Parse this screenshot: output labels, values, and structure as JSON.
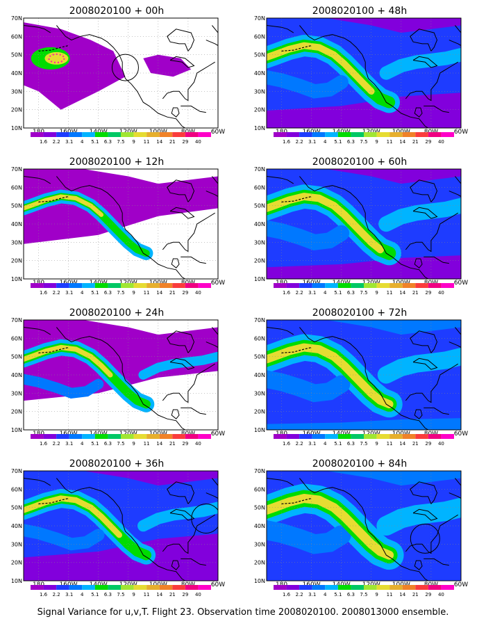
{
  "caption": "Signal Variance for u,v,T. Flight 23. Observation time 2008020100. 2008013000 ensemble.",
  "axes": {
    "lat_labels": [
      "70N",
      "60N",
      "50N",
      "40N",
      "30N",
      "20N",
      "10N"
    ],
    "lon_labels": [
      "180",
      "160W",
      "140W",
      "120W",
      "100W",
      "80W",
      "60W"
    ]
  },
  "colorbar": {
    "labels": [
      "1.6",
      "2.2",
      "3.1",
      "4",
      "5.1",
      "6.3",
      "7.5",
      "9",
      "11",
      "14",
      "21",
      "29",
      "40"
    ],
    "colors": [
      "#a000c8",
      "#8200dc",
      "#1e3cff",
      "#0078ff",
      "#00b4ff",
      "#00dc00",
      "#00c864",
      "#a0e632",
      "#e6dc32",
      "#e6af2d",
      "#f08228",
      "#fa3c3c",
      "#f00082",
      "#ff00c8"
    ]
  },
  "panels": [
    {
      "title": "2008020100 + 00h",
      "level": 0
    },
    {
      "title": "2008020100 + 48h",
      "level": 4
    },
    {
      "title": "2008020100 + 12h",
      "level": 1
    },
    {
      "title": "2008020100 + 60h",
      "level": 5
    },
    {
      "title": "2008020100 + 24h",
      "level": 2
    },
    {
      "title": "2008020100 + 72h",
      "level": 6
    },
    {
      "title": "2008020100 + 36h",
      "level": 3
    },
    {
      "title": "2008020100 + 84h",
      "level": 7
    }
  ]
}
